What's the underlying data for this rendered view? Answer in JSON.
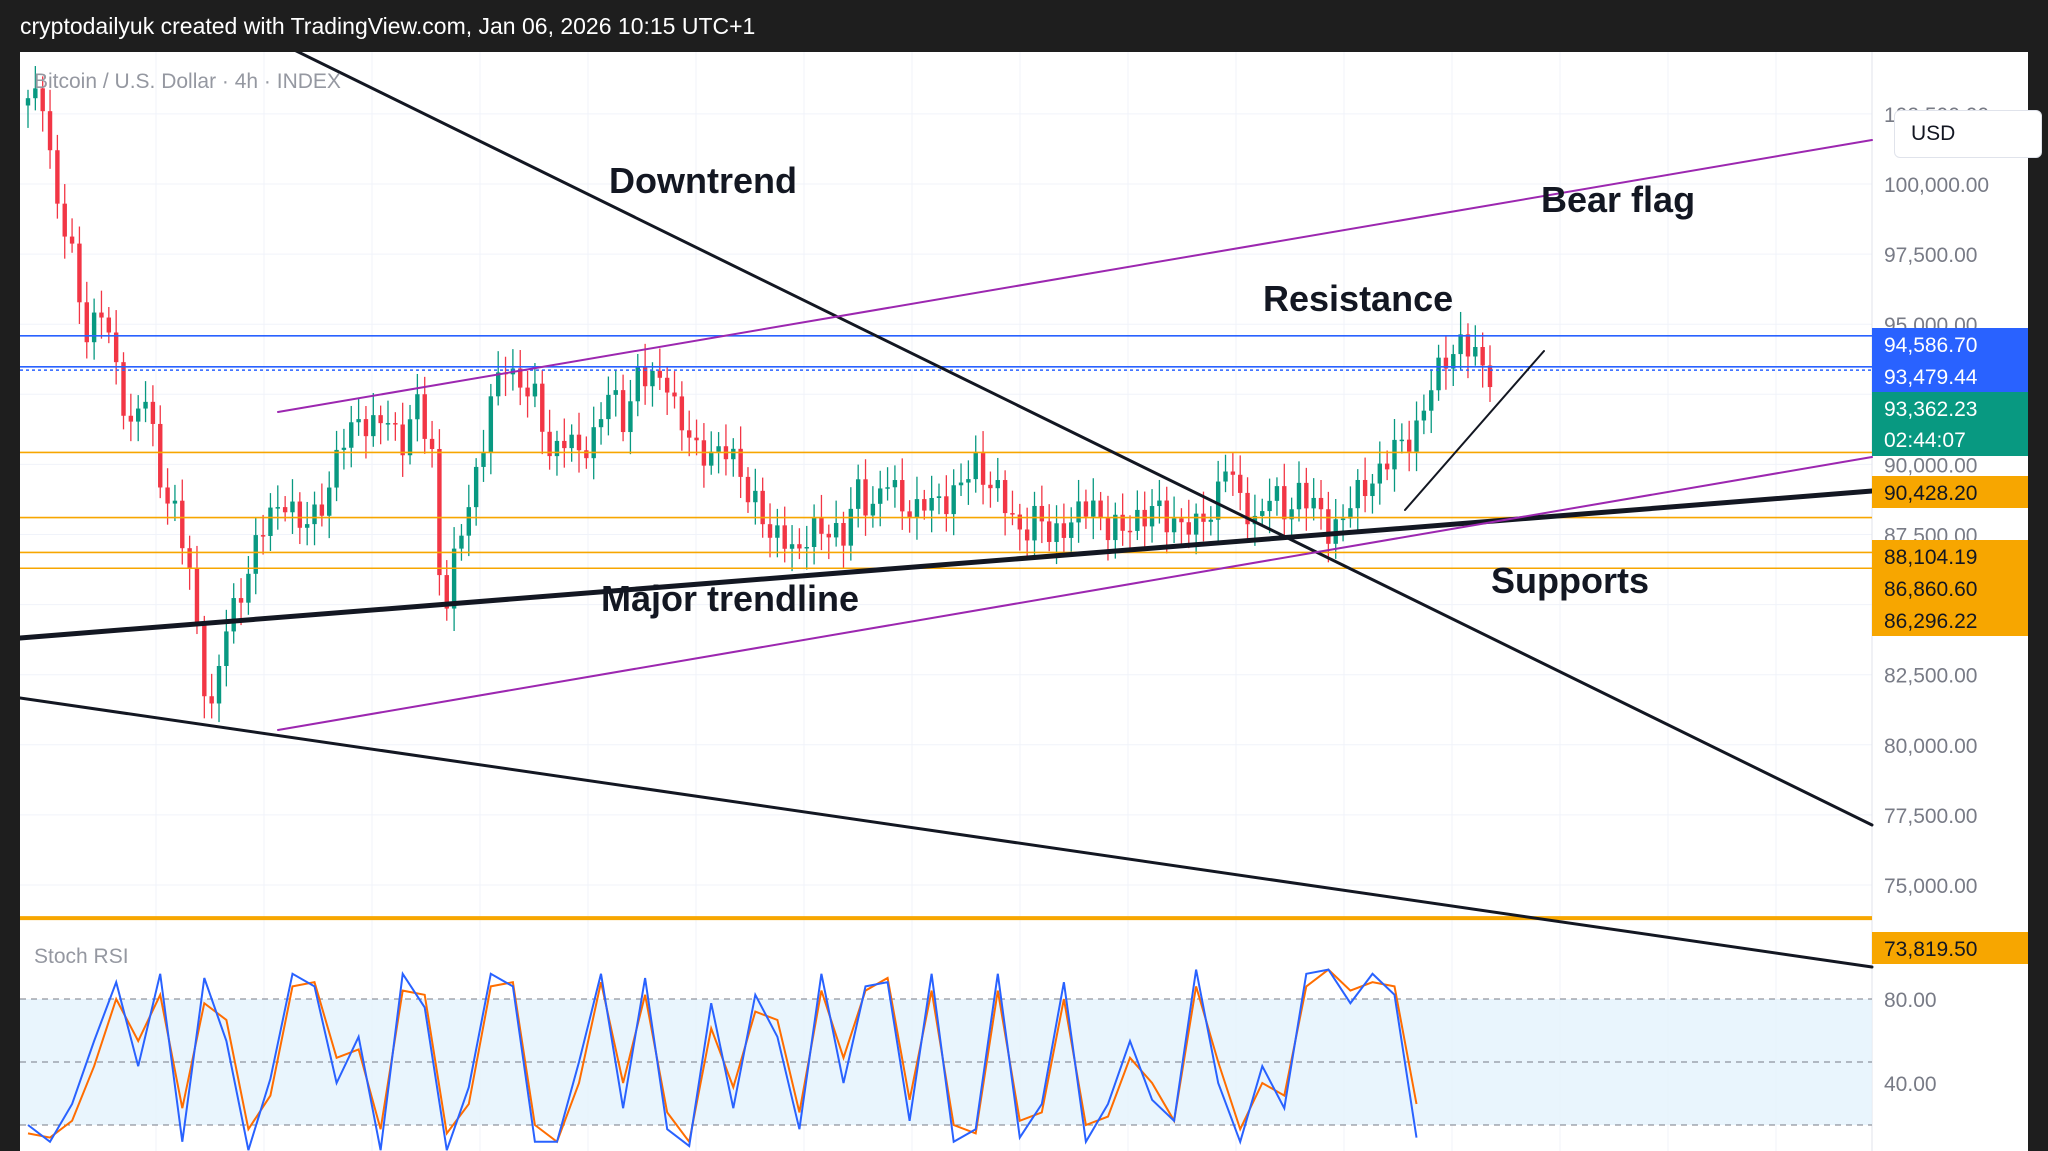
{
  "header": {
    "caption": "cryptodailyuk created with TradingView.com, Jan 06, 2026 10:15 UTC+1"
  },
  "toolbar": {
    "currency": "USD"
  },
  "chart_data": {
    "type": "candlestick",
    "symbol_line": "Bitcoin / U.S. Dollar · 4h · INDEX",
    "price_axis": {
      "ticks": [
        102500,
        100000,
        97500,
        95000,
        92500,
        90000,
        87500,
        85000,
        82500,
        80000,
        77500,
        75000
      ],
      "tick_labels": [
        "102,500.00",
        "100,000.00",
        "97,500.00",
        "95,000.00",
        "92,500.00",
        "90,000.00",
        "87,500.00",
        "85,000.00",
        "82,500.00",
        "80,000.00",
        "77,500.00",
        "75,000.00"
      ]
    },
    "price_tags": [
      {
        "label": "94,586.70",
        "value": 94586.7,
        "color": "#2962ff"
      },
      {
        "label": "93,479.44",
        "value": 93479.44,
        "color": "#2962ff"
      },
      {
        "label": "93,362.23",
        "sub": "02:44:07",
        "value": 93362.23,
        "color": "#089981"
      },
      {
        "label": "90,428.20",
        "value": 90428.2,
        "color": "#f7a600"
      },
      {
        "label": "88,104.19",
        "value": 88104.19,
        "color": "#f7a600"
      },
      {
        "label": "86,860.60",
        "value": 86860.6,
        "color": "#f7a600"
      },
      {
        "label": "86,296.22",
        "value": 86296.22,
        "color": "#f7a600"
      },
      {
        "label": "73,819.50",
        "value": 73819.5,
        "color": "#f7a600"
      }
    ],
    "annotations": [
      "Downtrend",
      "Bear flag",
      "Resistance",
      "Major trendline",
      "Supports"
    ],
    "price_path": [
      [
        0,
        102800
      ],
      [
        2,
        103200
      ],
      [
        4,
        99200
      ],
      [
        6,
        97300
      ],
      [
        8,
        94800
      ],
      [
        10,
        95400
      ],
      [
        12,
        93400
      ],
      [
        14,
        91400
      ],
      [
        16,
        92300
      ],
      [
        18,
        89600
      ],
      [
        20,
        88300
      ],
      [
        22,
        86000
      ],
      [
        24,
        82400
      ],
      [
        25,
        81200
      ],
      [
        27,
        84100
      ],
      [
        29,
        85600
      ],
      [
        31,
        87000
      ],
      [
        33,
        88200
      ],
      [
        35,
        88900
      ],
      [
        37,
        87600
      ],
      [
        39,
        88300
      ],
      [
        41,
        89200
      ],
      [
        43,
        90800
      ],
      [
        45,
        91800
      ],
      [
        47,
        91200
      ],
      [
        49,
        91600
      ],
      [
        51,
        90900
      ],
      [
        53,
        92000
      ],
      [
        55,
        90400
      ],
      [
        56,
        86300
      ],
      [
        57,
        85200
      ],
      [
        59,
        87500
      ],
      [
        61,
        89800
      ],
      [
        63,
        92100
      ],
      [
        65,
        93600
      ],
      [
        67,
        93000
      ],
      [
        69,
        92200
      ],
      [
        71,
        90500
      ],
      [
        73,
        91000
      ],
      [
        75,
        90200
      ],
      [
        77,
        91200
      ],
      [
        79,
        92500
      ],
      [
        81,
        91500
      ],
      [
        83,
        93400
      ],
      [
        85,
        92800
      ],
      [
        87,
        93100
      ],
      [
        89,
        91400
      ],
      [
        91,
        90300
      ],
      [
        93,
        90600
      ],
      [
        95,
        90400
      ],
      [
        97,
        89600
      ],
      [
        99,
        88800
      ],
      [
        101,
        87200
      ],
      [
        103,
        87600
      ],
      [
        105,
        86800
      ],
      [
        107,
        87600
      ],
      [
        109,
        87900
      ],
      [
        111,
        87200
      ],
      [
        113,
        89200
      ],
      [
        115,
        88500
      ],
      [
        117,
        89300
      ],
      [
        119,
        88700
      ],
      [
        121,
        88300
      ],
      [
        123,
        88600
      ],
      [
        125,
        88900
      ],
      [
        127,
        89100
      ],
      [
        129,
        90100
      ],
      [
        131,
        89400
      ],
      [
        133,
        88400
      ],
      [
        135,
        87700
      ],
      [
        137,
        88100
      ],
      [
        139,
        87400
      ],
      [
        141,
        87900
      ],
      [
        143,
        88100
      ],
      [
        145,
        88600
      ],
      [
        147,
        87800
      ],
      [
        149,
        87500
      ],
      [
        151,
        88200
      ],
      [
        153,
        88400
      ],
      [
        155,
        87900
      ],
      [
        157,
        88100
      ],
      [
        159,
        87600
      ],
      [
        161,
        88300
      ],
      [
        163,
        90200
      ],
      [
        165,
        88500
      ],
      [
        167,
        88100
      ],
      [
        169,
        88900
      ],
      [
        171,
        88200
      ],
      [
        173,
        89200
      ],
      [
        175,
        88400
      ],
      [
        177,
        87700
      ],
      [
        179,
        88200
      ],
      [
        181,
        88800
      ],
      [
        183,
        89600
      ],
      [
        185,
        90100
      ],
      [
        187,
        90700
      ],
      [
        189,
        91400
      ],
      [
        191,
        92600
      ],
      [
        193,
        93900
      ],
      [
        195,
        94400
      ],
      [
        197,
        93700
      ],
      [
        199,
        93362
      ]
    ],
    "stoch_rsi": {
      "label": "Stoch RSI",
      "ticks": [
        80,
        40
      ],
      "tick_labels": [
        "80.00",
        "40.00"
      ],
      "k": [
        [
          0,
          20
        ],
        [
          3,
          12
        ],
        [
          6,
          30
        ],
        [
          9,
          60
        ],
        [
          12,
          88
        ],
        [
          15,
          48
        ],
        [
          18,
          92
        ],
        [
          21,
          12
        ],
        [
          24,
          90
        ],
        [
          27,
          60
        ],
        [
          30,
          8
        ],
        [
          33,
          42
        ],
        [
          36,
          92
        ],
        [
          39,
          86
        ],
        [
          42,
          40
        ],
        [
          45,
          62
        ],
        [
          48,
          8
        ],
        [
          51,
          92
        ],
        [
          54,
          76
        ],
        [
          57,
          8
        ],
        [
          60,
          38
        ],
        [
          63,
          92
        ],
        [
          66,
          86
        ],
        [
          69,
          12
        ],
        [
          72,
          12
        ],
        [
          75,
          50
        ],
        [
          78,
          92
        ],
        [
          81,
          28
        ],
        [
          84,
          90
        ],
        [
          87,
          18
        ],
        [
          90,
          10
        ],
        [
          93,
          78
        ],
        [
          96,
          28
        ],
        [
          99,
          82
        ],
        [
          102,
          62
        ],
        [
          105,
          18
        ],
        [
          108,
          92
        ],
        [
          111,
          40
        ],
        [
          114,
          86
        ],
        [
          117,
          88
        ],
        [
          120,
          22
        ],
        [
          123,
          92
        ],
        [
          126,
          12
        ],
        [
          129,
          18
        ],
        [
          132,
          92
        ],
        [
          135,
          14
        ],
        [
          138,
          30
        ],
        [
          141,
          88
        ],
        [
          144,
          12
        ],
        [
          147,
          30
        ],
        [
          150,
          60
        ],
        [
          153,
          32
        ],
        [
          156,
          22
        ],
        [
          159,
          94
        ],
        [
          162,
          40
        ],
        [
          165,
          12
        ],
        [
          168,
          48
        ],
        [
          171,
          28
        ],
        [
          174,
          92
        ],
        [
          177,
          94
        ],
        [
          180,
          78
        ],
        [
          183,
          92
        ],
        [
          186,
          82
        ],
        [
          189,
          14
        ]
      ],
      "d": [
        [
          0,
          16
        ],
        [
          3,
          14
        ],
        [
          6,
          22
        ],
        [
          9,
          48
        ],
        [
          12,
          80
        ],
        [
          15,
          60
        ],
        [
          18,
          82
        ],
        [
          21,
          28
        ],
        [
          24,
          78
        ],
        [
          27,
          70
        ],
        [
          30,
          18
        ],
        [
          33,
          34
        ],
        [
          36,
          86
        ],
        [
          39,
          88
        ],
        [
          42,
          52
        ],
        [
          45,
          56
        ],
        [
          48,
          18
        ],
        [
          51,
          84
        ],
        [
          54,
          82
        ],
        [
          57,
          16
        ],
        [
          60,
          30
        ],
        [
          63,
          86
        ],
        [
          66,
          88
        ],
        [
          69,
          20
        ],
        [
          72,
          12
        ],
        [
          75,
          40
        ],
        [
          78,
          88
        ],
        [
          81,
          40
        ],
        [
          84,
          82
        ],
        [
          87,
          26
        ],
        [
          90,
          12
        ],
        [
          93,
          66
        ],
        [
          96,
          38
        ],
        [
          99,
          74
        ],
        [
          102,
          70
        ],
        [
          105,
          26
        ],
        [
          108,
          84
        ],
        [
          111,
          52
        ],
        [
          114,
          84
        ],
        [
          117,
          90
        ],
        [
          120,
          32
        ],
        [
          123,
          84
        ],
        [
          126,
          20
        ],
        [
          129,
          16
        ],
        [
          132,
          84
        ],
        [
          135,
          22
        ],
        [
          138,
          26
        ],
        [
          141,
          80
        ],
        [
          144,
          20
        ],
        [
          147,
          24
        ],
        [
          150,
          52
        ],
        [
          153,
          40
        ],
        [
          156,
          22
        ],
        [
          159,
          86
        ],
        [
          162,
          50
        ],
        [
          165,
          18
        ],
        [
          168,
          40
        ],
        [
          171,
          34
        ],
        [
          174,
          86
        ],
        [
          177,
          94
        ],
        [
          180,
          84
        ],
        [
          183,
          88
        ],
        [
          186,
          86
        ],
        [
          189,
          30
        ]
      ]
    }
  }
}
